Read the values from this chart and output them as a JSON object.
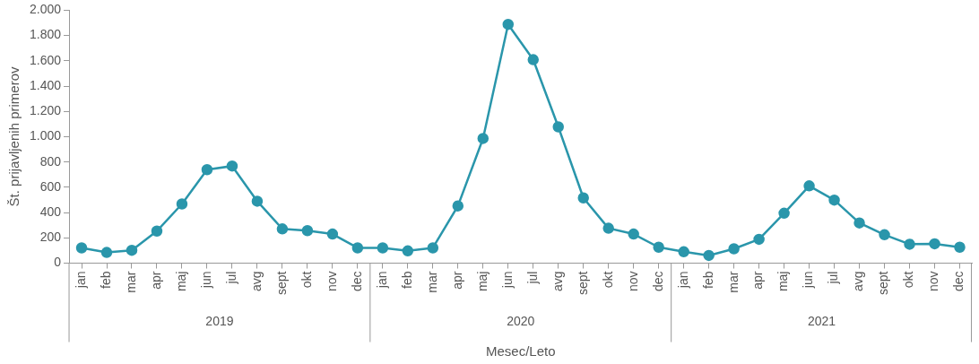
{
  "chart_data": {
    "type": "line",
    "xlabel": "Mesec/Leto",
    "ylabel": "Št. prijavljenih primerov",
    "categories": [
      "jan",
      "feb",
      "mar",
      "apr",
      "maj",
      "jun",
      "jul",
      "avg",
      "sept",
      "okt",
      "nov",
      "dec",
      "jan",
      "feb",
      "mar",
      "apr",
      "maj",
      "jun",
      "jul",
      "avg",
      "sept",
      "okt",
      "nov",
      "dec",
      "jan",
      "feb",
      "mar",
      "apr",
      "maj",
      "jun",
      "jul",
      "avg",
      "sept",
      "okt",
      "nov",
      "dec"
    ],
    "series": [
      {
        "color": "#2a96ab",
        "values": [
          121,
          85,
          102,
          254,
          468,
          739,
          768,
          490,
          271,
          257,
          230,
          121,
          121,
          97,
          121,
          453,
          986,
          1888,
          1609,
          1078,
          516,
          276,
          230,
          126,
          90,
          61,
          114,
          189,
          395,
          611,
          499,
          318,
          225,
          150,
          153,
          126
        ]
      }
    ],
    "annotations": [
      "2019",
      "2020",
      "2021"
    ],
    "ylim": [
      0,
      2000
    ],
    "yticks": [
      0,
      200,
      400,
      600,
      800,
      {
        "value": 1000,
        "label": "1.000"
      },
      {
        "value": 1200,
        "label": "1.200"
      },
      {
        "value": 1400,
        "label": "1.400"
      },
      {
        "value": 1600,
        "label": "1.600"
      },
      {
        "value": 1800,
        "label": "1.800"
      },
      {
        "value": 2000,
        "label": "2.000"
      }
    ],
    "grid": false,
    "legend": false,
    "marker": "circle",
    "line_style": "solid"
  }
}
